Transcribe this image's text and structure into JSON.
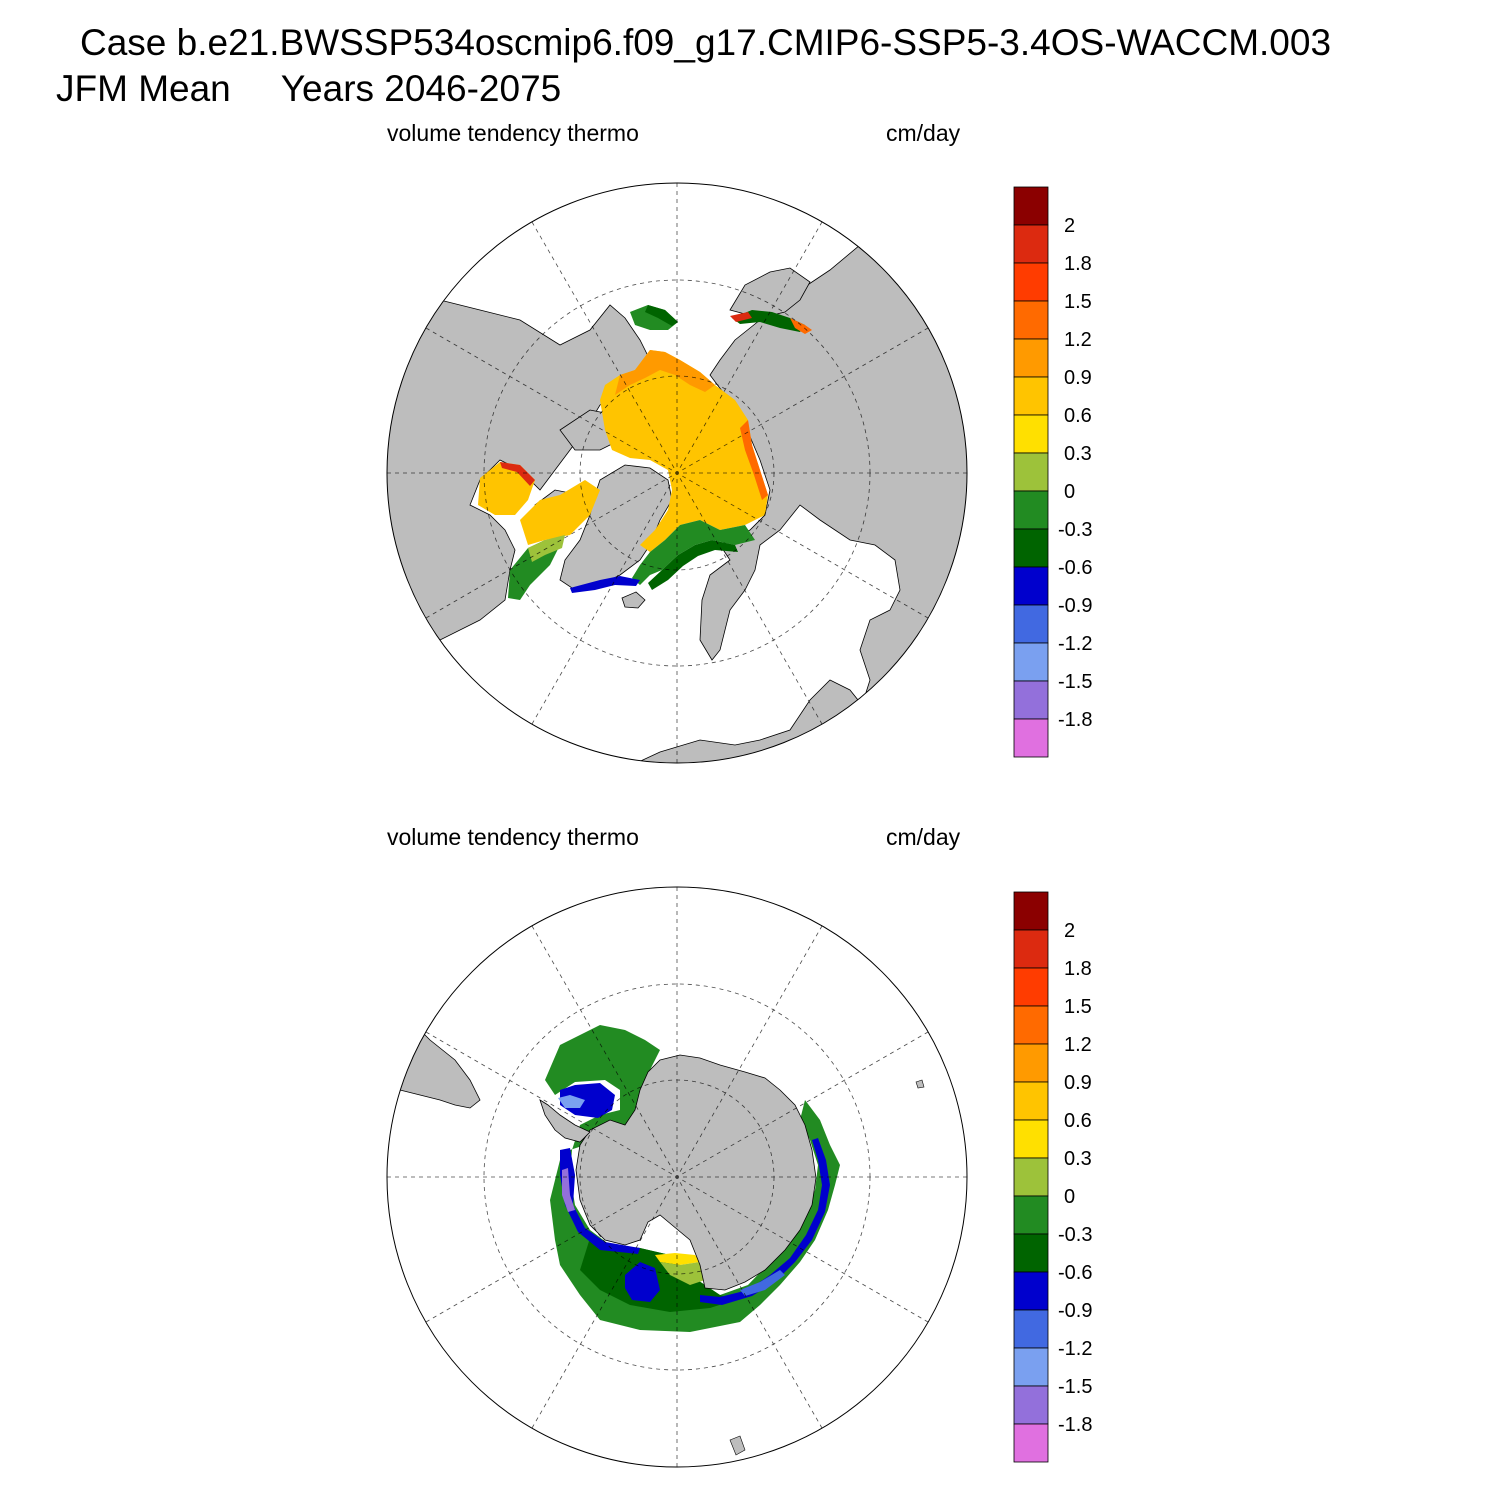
{
  "title": {
    "case": "Case b.e21.BWSSP534oscmip6.f09_g17.CMIP6-SSP5-3.4OS-WACCM.003",
    "season": "JFM Mean",
    "years": "Years 2046-2075"
  },
  "panels": [
    {
      "hemisphere": "north",
      "variable_label": "volume tendency thermo",
      "units_label": "cm/day"
    },
    {
      "hemisphere": "south",
      "variable_label": "volume tendency thermo",
      "units_label": "cm/day"
    }
  ],
  "colorbar": {
    "labels": [
      "2",
      "1.8",
      "1.5",
      "1.2",
      "0.9",
      "0.6",
      "0.3",
      "0",
      "-0.3",
      "-0.6",
      "-0.9",
      "-1.2",
      "-1.5",
      "-1.8"
    ],
    "colors_top_to_bottom": [
      "#8b0000",
      "#dc2a10",
      "#ff3c00",
      "#ff6a00",
      "#ff9a00",
      "#ffc400",
      "#ffe000",
      "#9dc23a",
      "#228b22",
      "#006400",
      "#0000cd",
      "#4169e1",
      "#7aa0f0",
      "#9370db",
      "#e070e0"
    ]
  },
  "map_colors": {
    "land": "#bdbdbd",
    "ocean": "#ffffff"
  }
}
